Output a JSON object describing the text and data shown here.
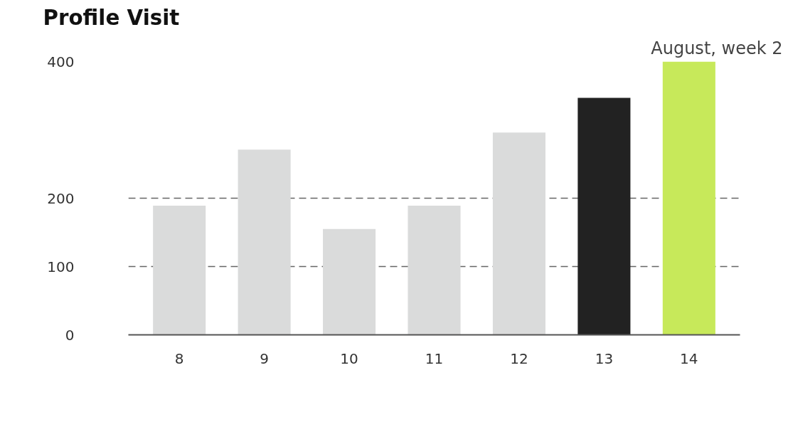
{
  "chart_data": {
    "type": "bar",
    "title": "Profile Visit",
    "subtitle": "August, week 2",
    "categories": [
      "8",
      "9",
      "10",
      "11",
      "12",
      "13",
      "14"
    ],
    "values": [
      189,
      271,
      155,
      189,
      296,
      347,
      400
    ],
    "colors": [
      "#dadbdb",
      "#dadbdb",
      "#dadbdb",
      "#dadbdb",
      "#dadbdb",
      "#222222",
      "#c7e95a"
    ],
    "ylim": [
      0,
      400
    ],
    "yticks": [
      0,
      100,
      200,
      400
    ],
    "grid": "y"
  }
}
